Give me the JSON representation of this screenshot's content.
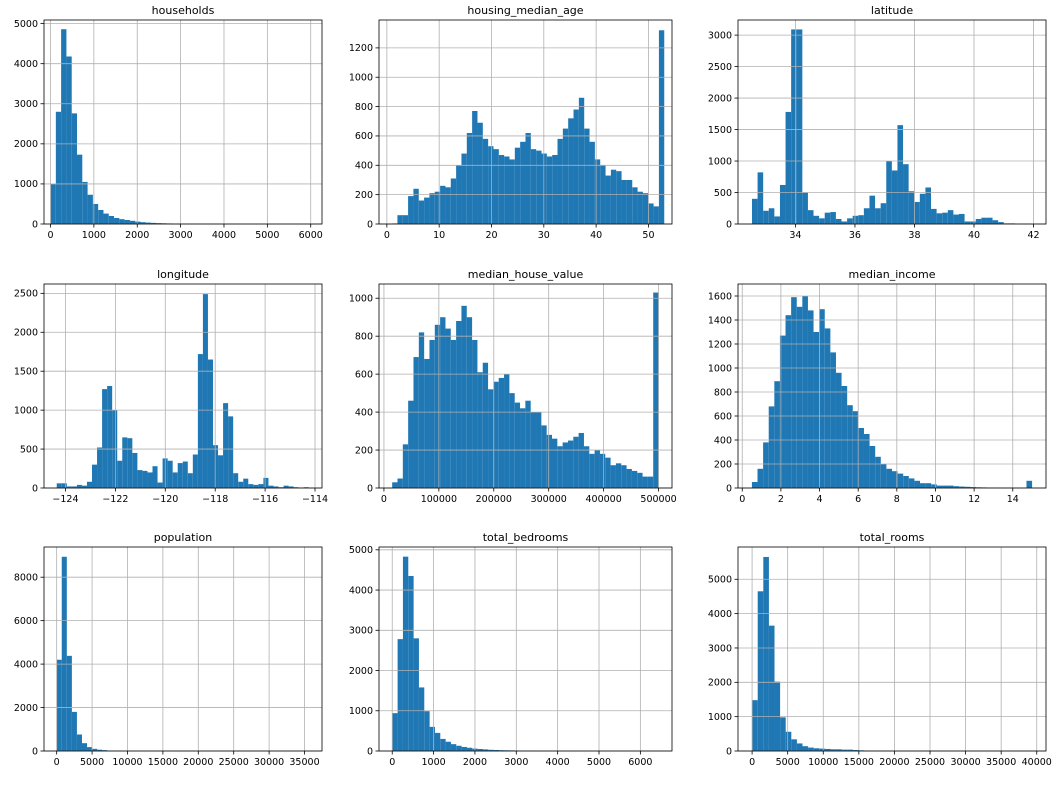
{
  "colors": {
    "bar": "#1f77b4",
    "grid": "#b0b0b0",
    "axis": "#000000",
    "background": "#ffffff"
  },
  "chart_data": [
    {
      "type": "bar",
      "title": "households",
      "grid": true,
      "xlim": [
        -150,
        6260
      ],
      "ylim": [
        0,
        5090
      ],
      "xticks": [
        0,
        1000,
        2000,
        3000,
        4000,
        5000,
        6000
      ],
      "xtick_labels": [
        "0",
        "1000",
        "2000",
        "3000",
        "4000",
        "5000",
        "6000"
      ],
      "yticks": [
        0,
        1000,
        2000,
        3000,
        4000,
        5000
      ],
      "ytick_labels": [
        "0",
        "1000",
        "2000",
        "3000",
        "4000",
        "5000"
      ],
      "bin_start": 1,
      "bin_width": 122,
      "values": [
        1000,
        2800,
        4860,
        4180,
        2760,
        1730,
        1050,
        730,
        500,
        350,
        260,
        200,
        150,
        120,
        100,
        80,
        60,
        45,
        35,
        28,
        22,
        18,
        14,
        12,
        10,
        8,
        7,
        6,
        5,
        4,
        3,
        3,
        2,
        2,
        2,
        1,
        1,
        1,
        1,
        1,
        1,
        1,
        1,
        1,
        1,
        1,
        1,
        1,
        1,
        1
      ]
    },
    {
      "type": "bar",
      "title": "housing_median_age",
      "grid": true,
      "xlim": [
        -1.5,
        54.5
      ],
      "ylim": [
        0,
        1390
      ],
      "xticks": [
        0,
        10,
        20,
        30,
        40,
        50
      ],
      "xtick_labels": [
        "0",
        "10",
        "20",
        "30",
        "40",
        "50"
      ],
      "yticks": [
        0,
        200,
        400,
        600,
        800,
        1000,
        1200
      ],
      "ytick_labels": [
        "0",
        "200",
        "400",
        "600",
        "800",
        "1000",
        "1200"
      ],
      "bin_start": 1,
      "bin_width": 1.02,
      "values": [
        4,
        60,
        60,
        190,
        240,
        160,
        180,
        210,
        220,
        260,
        250,
        310,
        400,
        480,
        620,
        770,
        690,
        580,
        530,
        510,
        470,
        460,
        440,
        520,
        560,
        620,
        510,
        500,
        480,
        460,
        470,
        580,
        650,
        720,
        780,
        860,
        650,
        560,
        440,
        400,
        330,
        370,
        360,
        300,
        300,
        250,
        220,
        210,
        140,
        120,
        1320
      ]
    },
    {
      "type": "bar",
      "title": "latitude",
      "grid": true,
      "xlim": [
        32.07,
        42.42
      ],
      "ylim": [
        0,
        3240
      ],
      "xticks": [
        34,
        36,
        38,
        40,
        42
      ],
      "xtick_labels": [
        "34",
        "36",
        "38",
        "40",
        "42"
      ],
      "yticks": [
        0,
        500,
        1000,
        1500,
        2000,
        2500,
        3000
      ],
      "ytick_labels": [
        "0",
        "500",
        "1000",
        "1500",
        "2000",
        "2500",
        "3000"
      ],
      "bin_start": 32.54,
      "bin_width": 0.188,
      "values": [
        400,
        820,
        210,
        250,
        120,
        620,
        1780,
        3090,
        3090,
        500,
        220,
        130,
        90,
        180,
        190,
        80,
        40,
        90,
        130,
        140,
        250,
        450,
        250,
        330,
        1000,
        850,
        1570,
        950,
        520,
        350,
        480,
        580,
        240,
        170,
        180,
        220,
        150,
        160,
        40,
        40,
        80,
        100,
        100,
        60,
        30,
        10,
        10,
        5,
        5,
        2
      ]
    },
    {
      "type": "bar",
      "title": "longitude",
      "grid": true,
      "xlim": [
        -124.86,
        -113.72
      ],
      "ylim": [
        0,
        2620
      ],
      "xticks": [
        -124,
        -122,
        -120,
        -118,
        -116,
        -114
      ],
      "xtick_labels": [
        "−124",
        "−122",
        "−120",
        "−118",
        "−116",
        "−114"
      ],
      "yticks": [
        0,
        500,
        1000,
        1500,
        2000,
        2500
      ],
      "ytick_labels": [
        "0",
        "500",
        "1000",
        "1500",
        "2000",
        "2500"
      ],
      "bin_start": -124.35,
      "bin_width": 0.202,
      "values": [
        60,
        60,
        20,
        20,
        40,
        30,
        80,
        300,
        520,
        1270,
        1310,
        1000,
        350,
        650,
        640,
        450,
        230,
        220,
        200,
        280,
        70,
        380,
        350,
        200,
        320,
        340,
        190,
        430,
        1720,
        2490,
        1650,
        550,
        420,
        1090,
        920,
        190,
        80,
        120,
        50,
        40,
        50,
        130,
        30,
        20,
        10,
        30,
        20,
        10,
        5,
        10
      ]
    },
    {
      "type": "bar",
      "title": "median_house_value",
      "grid": true,
      "xlim": [
        -9000,
        524500
      ],
      "ylim": [
        0,
        1075
      ],
      "xticks": [
        0,
        100000,
        200000,
        300000,
        400000,
        500000
      ],
      "xtick_labels": [
        "0",
        "100000",
        "200000",
        "300000",
        "400000",
        "500000"
      ],
      "yticks": [
        0,
        200,
        400,
        600,
        800,
        1000
      ],
      "ytick_labels": [
        "0",
        "200",
        "400",
        "600",
        "800",
        "1000"
      ],
      "bin_start": 14999,
      "bin_width": 9700,
      "values": [
        30,
        50,
        230,
        460,
        690,
        820,
        680,
        780,
        860,
        900,
        840,
        780,
        880,
        960,
        900,
        780,
        610,
        660,
        520,
        560,
        580,
        600,
        500,
        450,
        420,
        460,
        400,
        400,
        330,
        280,
        260,
        220,
        240,
        250,
        270,
        290,
        220,
        180,
        200,
        180,
        160,
        120,
        130,
        120,
        100,
        90,
        80,
        60,
        60,
        1030
      ]
    },
    {
      "type": "bar",
      "title": "median_income",
      "grid": true,
      "xlim": [
        -0.22,
        15.72
      ],
      "ylim": [
        0,
        1700
      ],
      "xticks": [
        0,
        2,
        4,
        6,
        8,
        10,
        12,
        14
      ],
      "xtick_labels": [
        "0",
        "2",
        "4",
        "6",
        "8",
        "10",
        "12",
        "14"
      ],
      "yticks": [
        0,
        200,
        400,
        600,
        800,
        1000,
        1200,
        1400,
        1600
      ],
      "ytick_labels": [
        "0",
        "200",
        "400",
        "600",
        "800",
        "1000",
        "1200",
        "1400",
        "1600"
      ],
      "bin_start": 0.5,
      "bin_width": 0.29,
      "values": [
        50,
        160,
        380,
        680,
        890,
        1270,
        1440,
        1590,
        1510,
        1600,
        1480,
        1300,
        1490,
        1330,
        1130,
        960,
        850,
        690,
        640,
        500,
        450,
        350,
        260,
        200,
        160,
        140,
        120,
        100,
        80,
        60,
        40,
        40,
        30,
        20,
        20,
        20,
        15,
        12,
        10,
        8,
        6,
        5,
        4,
        4,
        3,
        3,
        2,
        2,
        2,
        60
      ]
    },
    {
      "type": "bar",
      "title": "population",
      "grid": true,
      "xlim": [
        -1790,
        37470
      ],
      "ylim": [
        0,
        9390
      ],
      "xticks": [
        0,
        5000,
        10000,
        15000,
        20000,
        25000,
        30000,
        35000
      ],
      "xtick_labels": [
        "0",
        "5000",
        "10000",
        "15000",
        "20000",
        "25000",
        "30000",
        "35000"
      ],
      "yticks": [
        0,
        2000,
        4000,
        6000,
        8000
      ],
      "ytick_labels": [
        "0",
        "2000",
        "4000",
        "6000",
        "8000"
      ],
      "bin_start": 3,
      "bin_width": 714,
      "values": [
        4200,
        8940,
        4380,
        1800,
        760,
        360,
        180,
        100,
        60,
        40,
        20,
        15,
        10,
        8,
        6,
        4,
        3,
        2,
        2,
        2,
        1,
        1,
        1,
        1,
        1,
        1,
        1,
        1,
        1,
        1,
        1,
        1,
        1,
        1,
        1,
        1,
        1,
        1,
        1,
        1,
        1,
        1,
        1,
        1,
        1,
        1,
        1,
        1,
        1,
        1
      ]
    },
    {
      "type": "bar",
      "title": "total_bedrooms",
      "grid": true,
      "xlim": [
        -320,
        6765
      ],
      "ylim": [
        0,
        5070
      ],
      "xticks": [
        0,
        1000,
        2000,
        3000,
        4000,
        5000,
        6000
      ],
      "xtick_labels": [
        "0",
        "1000",
        "2000",
        "3000",
        "4000",
        "5000",
        "6000"
      ],
      "yticks": [
        0,
        1000,
        2000,
        3000,
        4000,
        5000
      ],
      "ytick_labels": [
        "0",
        "1000",
        "2000",
        "3000",
        "4000",
        "5000"
      ],
      "bin_start": 1,
      "bin_width": 129,
      "values": [
        940,
        2780,
        4830,
        4350,
        2800,
        1580,
        990,
        600,
        450,
        300,
        230,
        170,
        130,
        100,
        80,
        60,
        50,
        40,
        30,
        25,
        20,
        18,
        15,
        10,
        8,
        7,
        6,
        5,
        4,
        4,
        3,
        3,
        2,
        2,
        2,
        1,
        1,
        1,
        1,
        1,
        1,
        1,
        1,
        1,
        1,
        1,
        1,
        1,
        1,
        1
      ]
    },
    {
      "type": "bar",
      "title": "total_rooms",
      "grid": true,
      "xlim": [
        -1980,
        41300
      ],
      "ylim": [
        0,
        5940
      ],
      "xticks": [
        0,
        5000,
        10000,
        15000,
        20000,
        25000,
        30000,
        35000,
        40000
      ],
      "xtick_labels": [
        "0",
        "5000",
        "10000",
        "15000",
        "20000",
        "25000",
        "30000",
        "35000",
        "40000"
      ],
      "yticks": [
        0,
        1000,
        2000,
        3000,
        4000,
        5000
      ],
      "ytick_labels": [
        "0",
        "1000",
        "2000",
        "3000",
        "4000",
        "5000"
      ],
      "bin_start": 2,
      "bin_width": 787,
      "values": [
        1480,
        4650,
        5650,
        3650,
        2020,
        980,
        560,
        340,
        220,
        140,
        100,
        80,
        70,
        60,
        50,
        50,
        40,
        40,
        30,
        20,
        15,
        10,
        8,
        6,
        5,
        4,
        3,
        3,
        2,
        2,
        2,
        1,
        1,
        1,
        1,
        1,
        1,
        1,
        1,
        1,
        1,
        1,
        1,
        1,
        1,
        1,
        1,
        1,
        1,
        1
      ]
    }
  ]
}
